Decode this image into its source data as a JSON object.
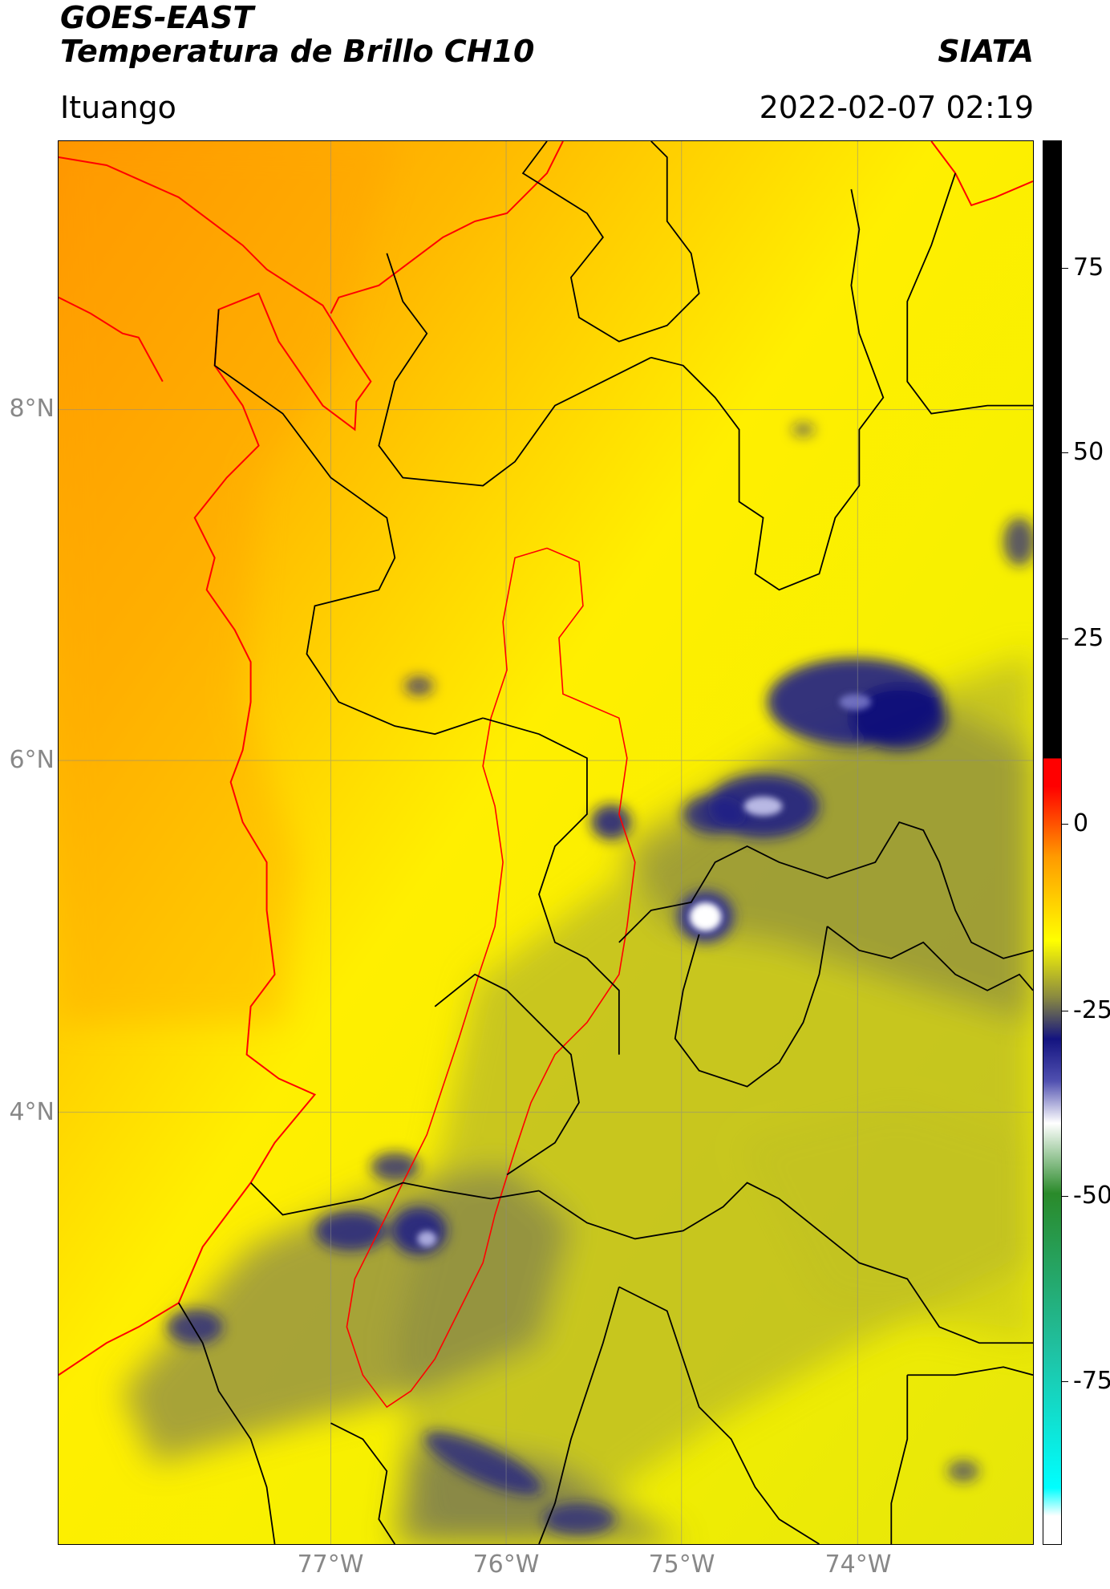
{
  "header": {
    "title_line1": "GOES-EAST",
    "title_line2": "Temperatura de Brillo CH10",
    "org": "SIATA",
    "location": "Ituango",
    "datetime": "2022-02-07 02:19"
  },
  "axes": {
    "lat_labels": [
      "8°N",
      "6°N",
      "4°N"
    ],
    "lon_labels": [
      "77°W",
      "76°W",
      "75°W",
      "74°W"
    ]
  },
  "colorbar": {
    "tick_labels": [
      "75",
      "50",
      "25",
      "0",
      "-25",
      "-50",
      "-75"
    ],
    "colors": {
      "top": "#000000",
      "red": "#ff0000",
      "orange": "#ff9a00",
      "yellow": "#ffff00",
      "olive": "#8a8a40",
      "navy": "#141480",
      "white": "#ffffff",
      "green": "#2a8a2a",
      "teal": "#20c0a0",
      "cyan": "#00ffff"
    }
  },
  "map": {
    "colors": {
      "warm": "#ff9a00",
      "yellow": "#ffff00",
      "cloud_olive": "#9a9a3a",
      "deep_cloud": "#1a1a80",
      "coast": "#ff0000",
      "border": "#000000"
    }
  }
}
